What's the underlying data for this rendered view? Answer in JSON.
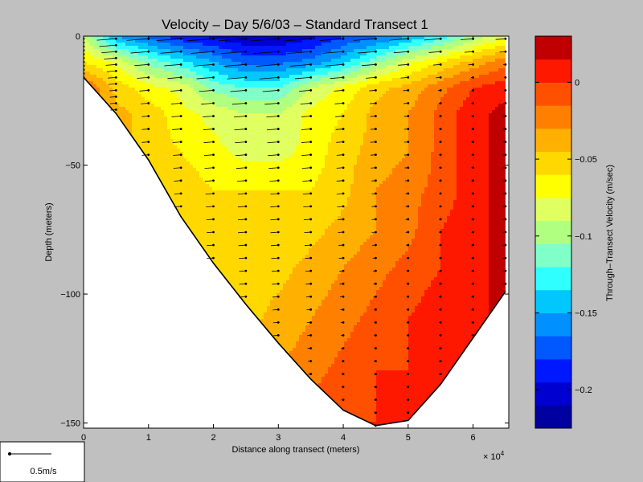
{
  "chart_data": {
    "type": "contour",
    "title": "Velocity – Day 5/6/03 – Standard Transect 1",
    "xlabel": "Distance along transect (meters)",
    "ylabel": "Depth (meters)",
    "x_multiplier": "× 10",
    "x_multiplier_exp": "4",
    "xlim": [
      0,
      65500
    ],
    "ylim": [
      -152,
      0
    ],
    "xticks": [
      {
        "v": 0,
        "label": "0"
      },
      {
        "v": 10000,
        "label": "1"
      },
      {
        "v": 20000,
        "label": "2"
      },
      {
        "v": 30000,
        "label": "3"
      },
      {
        "v": 40000,
        "label": "4"
      },
      {
        "v": 50000,
        "label": "5"
      },
      {
        "v": 60000,
        "label": "6"
      }
    ],
    "yticks": [
      {
        "v": 0,
        "label": "0"
      },
      {
        "v": -50,
        "label": "−50"
      },
      {
        "v": -100,
        "label": "−100"
      },
      {
        "v": -150,
        "label": "−150"
      }
    ],
    "colorbar": {
      "label": "Through–Transect Velocity (m/sec)",
      "range": [
        -0.225,
        0.03
      ],
      "ticks": [
        {
          "v": 0,
          "label": "0"
        },
        {
          "v": -0.05,
          "label": "−0.05"
        },
        {
          "v": -0.1,
          "label": "−0.1"
        },
        {
          "v": -0.15,
          "label": "−0.15"
        },
        {
          "v": -0.2,
          "label": "−0.2"
        }
      ]
    },
    "scale_arrow": {
      "label": "0.5m/s",
      "speed": 0.5
    },
    "stations_x": [
      0,
      5000,
      10000,
      15000,
      20000,
      25000,
      30000,
      35000,
      40000,
      45000,
      50000,
      55000,
      60000,
      65000
    ],
    "bottom_depth": [
      -16,
      -30,
      -48,
      -70,
      -88,
      -104,
      -119,
      -133,
      -145,
      -151,
      -149,
      -135,
      -117,
      -99
    ],
    "velocity_grid": {
      "depths": [
        0,
        -10,
        -20,
        -30,
        -45,
        -60,
        -75,
        -90,
        -110,
        -130,
        -150
      ],
      "values": [
        [
          -0.09,
          -0.15,
          -0.17,
          -0.19,
          -0.2,
          -0.21,
          -0.21,
          -0.2,
          -0.18,
          -0.17,
          -0.15,
          -0.13,
          -0.1,
          -0.08
        ],
        [
          -0.06,
          -0.08,
          -0.11,
          -0.13,
          -0.15,
          -0.17,
          -0.17,
          -0.16,
          -0.14,
          -0.11,
          -0.08,
          -0.06,
          -0.04,
          -0.02
        ],
        [
          -0.01,
          -0.05,
          -0.07,
          -0.08,
          -0.11,
          -0.12,
          -0.12,
          -0.09,
          -0.07,
          -0.05,
          -0.04,
          -0.02,
          0.0,
          0.01
        ],
        [
          -0.01,
          -0.04,
          -0.05,
          -0.07,
          -0.08,
          -0.09,
          -0.09,
          -0.07,
          -0.06,
          -0.04,
          -0.03,
          -0.01,
          0.01,
          0.02
        ],
        [
          -0.01,
          -0.04,
          -0.05,
          -0.06,
          -0.07,
          -0.08,
          -0.08,
          -0.07,
          -0.05,
          -0.04,
          -0.03,
          -0.01,
          0.01,
          0.02
        ],
        [
          -0.01,
          -0.04,
          -0.05,
          -0.05,
          -0.06,
          -0.06,
          -0.06,
          -0.06,
          -0.05,
          -0.03,
          -0.02,
          -0.01,
          0.01,
          0.02
        ],
        [
          -0.01,
          -0.04,
          -0.05,
          -0.05,
          -0.05,
          -0.06,
          -0.06,
          -0.05,
          -0.04,
          -0.03,
          -0.02,
          0.0,
          0.01,
          0.02
        ],
        [
          -0.01,
          -0.04,
          -0.05,
          -0.05,
          -0.05,
          -0.05,
          -0.05,
          -0.04,
          -0.03,
          -0.02,
          -0.01,
          0.0,
          0.01,
          0.02
        ],
        [
          -0.01,
          -0.04,
          -0.05,
          -0.05,
          -0.05,
          -0.05,
          -0.04,
          -0.03,
          -0.02,
          -0.01,
          0.0,
          0.01,
          0.01,
          0.02
        ],
        [
          -0.01,
          -0.04,
          -0.05,
          -0.05,
          -0.05,
          -0.04,
          -0.03,
          -0.02,
          -0.01,
          0.0,
          0.0,
          0.01,
          0.01,
          0.02
        ],
        [
          -0.01,
          -0.04,
          -0.05,
          -0.05,
          -0.04,
          -0.03,
          -0.02,
          -0.01,
          0.0,
          0.0,
          0.0,
          0.01,
          0.01,
          0.02
        ]
      ]
    },
    "colors": {
      "levels": [
        "#0000a0",
        "#0000d0",
        "#0018ff",
        "#0058ff",
        "#0090ff",
        "#00c8ff",
        "#30ffff",
        "#80ffc8",
        "#b0ff80",
        "#e0ff60",
        "#ffff00",
        "#ffd800",
        "#ffb000",
        "#ff8000",
        "#ff5000",
        "#ff1800",
        "#c00000"
      ],
      "background": "#c0c0c0",
      "bathymetry": "#000000"
    }
  }
}
